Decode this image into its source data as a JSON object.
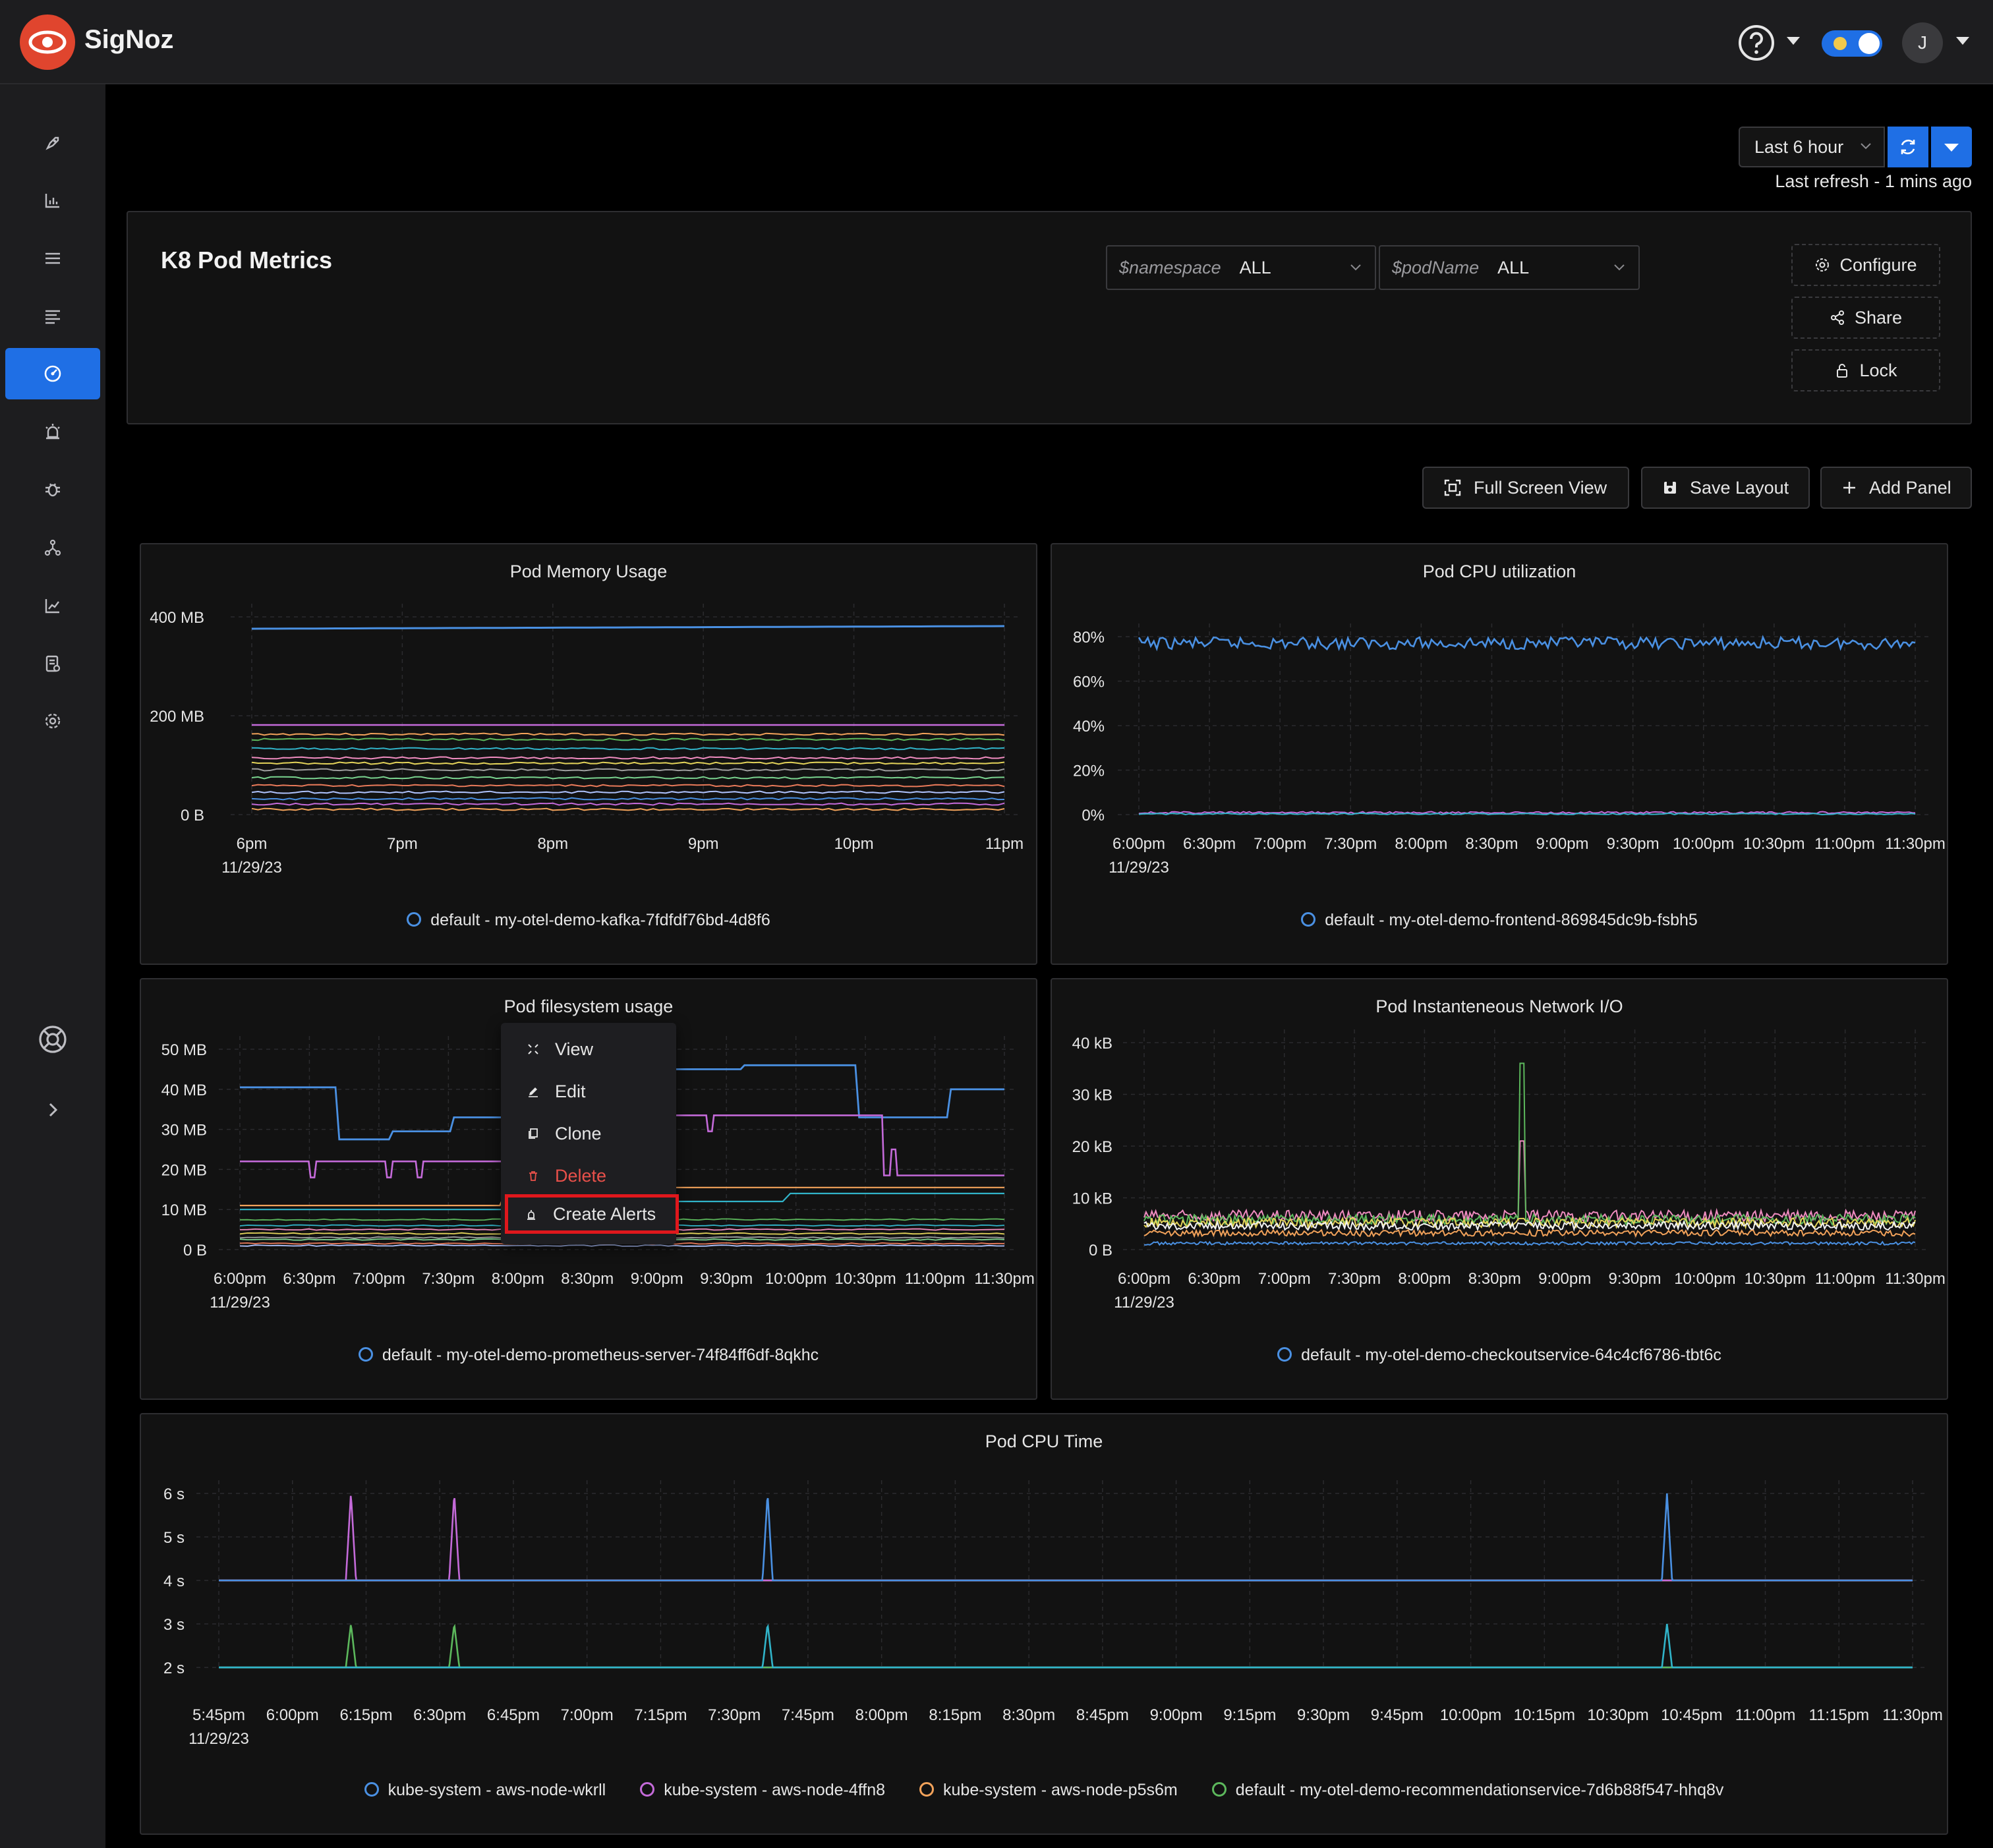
{
  "app": {
    "name": "SigNoz",
    "avatar_initial": "J"
  },
  "header": {
    "time_range": "Last 6 hour",
    "last_refresh": "Last refresh - 1 mins ago"
  },
  "sidebar": {
    "items": [
      {
        "icon": "rocket-icon"
      },
      {
        "icon": "bar-chart-icon"
      },
      {
        "icon": "menu-list-icon"
      },
      {
        "icon": "logs-icon"
      },
      {
        "icon": "dashboard-icon",
        "active": true
      },
      {
        "icon": "alarm-icon"
      },
      {
        "icon": "bug-icon"
      },
      {
        "icon": "service-map-icon"
      },
      {
        "icon": "line-chart-icon"
      },
      {
        "icon": "billing-icon"
      },
      {
        "icon": "gear-icon"
      }
    ],
    "bottom": [
      {
        "icon": "support-icon"
      },
      {
        "icon": "expand-chevron-icon"
      }
    ]
  },
  "dashboard": {
    "title": "K8 Pod Metrics",
    "variables": [
      {
        "name": "$namespace",
        "value": "ALL"
      },
      {
        "name": "$podName",
        "value": "ALL"
      }
    ],
    "actions": {
      "configure": "Configure",
      "share": "Share",
      "lock": "Lock"
    },
    "toolbar": {
      "full_screen": "Full Screen View",
      "save_layout": "Save Layout",
      "add_panel": "Add Panel"
    }
  },
  "context_menu": {
    "items": [
      "View",
      "Edit",
      "Clone",
      "Delete",
      "Create Alerts"
    ]
  },
  "colors": {
    "accent": "#1f6fe5",
    "blue": "#4a90e2",
    "purple": "#c46ad9",
    "orange": "#f2a25a",
    "green": "#5cb85c",
    "cyan": "#31b4c9",
    "pink": "#f08cc0",
    "danger": "#e8504a"
  },
  "panels": [
    {
      "title": "Pod Memory Usage",
      "y_ticks": [
        "400 MB",
        "200 MB",
        "0 B"
      ],
      "x_ticks": [
        "6pm",
        "7pm",
        "8pm",
        "9pm",
        "10pm",
        "11pm"
      ],
      "x_date": "11/29/23",
      "legend": [
        "default - my-otel-demo-kafka-7fdfdf76bd-4d8f6"
      ]
    },
    {
      "title": "Pod CPU utilization",
      "y_ticks": [
        "80%",
        "60%",
        "40%",
        "20%",
        "0%"
      ],
      "x_ticks": [
        "6:00pm",
        "6:30pm",
        "7:00pm",
        "7:30pm",
        "8:00pm",
        "8:30pm",
        "9:00pm",
        "9:30pm",
        "10:00pm",
        "10:30pm",
        "11:00pm",
        "11:30pm"
      ],
      "x_date": "11/29/23",
      "legend": [
        "default - my-otel-demo-frontend-869845dc9b-fsbh5"
      ]
    },
    {
      "title": "Pod filesystem usage",
      "y_ticks": [
        "50 MB",
        "40 MB",
        "30 MB",
        "20 MB",
        "10 MB",
        "0 B"
      ],
      "x_ticks": [
        "6:00pm",
        "6:30pm",
        "7:00pm",
        "7:30pm",
        "8:00pm",
        "8:30pm",
        "9:00pm",
        "9:30pm",
        "10:00pm",
        "10:30pm",
        "11:00pm",
        "11:30pm"
      ],
      "x_date": "11/29/23",
      "legend": [
        "default - my-otel-demo-prometheus-server-74f84ff6df-8qkhc"
      ]
    },
    {
      "title": "Pod Instanteneous Network I/O",
      "y_ticks": [
        "40 kB",
        "30 kB",
        "20 kB",
        "10 kB",
        "0 B"
      ],
      "x_ticks": [
        "6:00pm",
        "6:30pm",
        "7:00pm",
        "7:30pm",
        "8:00pm",
        "8:30pm",
        "9:00pm",
        "9:30pm",
        "10:00pm",
        "10:30pm",
        "11:00pm",
        "11:30pm"
      ],
      "x_date": "11/29/23",
      "legend": [
        "default - my-otel-demo-checkoutservice-64c4cf6786-tbt6c"
      ]
    },
    {
      "title": "Pod CPU Time",
      "y_ticks": [
        "6 s",
        "5 s",
        "4 s",
        "3 s",
        "2 s"
      ],
      "x_ticks": [
        "5:45pm",
        "6:00pm",
        "6:15pm",
        "6:30pm",
        "6:45pm",
        "7:00pm",
        "7:15pm",
        "7:30pm",
        "7:45pm",
        "8:00pm",
        "8:15pm",
        "8:30pm",
        "8:45pm",
        "9:00pm",
        "9:15pm",
        "9:30pm",
        "9:45pm",
        "10:00pm",
        "10:15pm",
        "10:30pm",
        "10:45pm",
        "11:00pm",
        "11:15pm",
        "11:30pm"
      ],
      "x_date": "11/29/23",
      "legend": [
        "kube-system - aws-node-wkrll",
        "kube-system - aws-node-4ffn8",
        "kube-system - aws-node-p5s6m",
        "default - my-otel-demo-recommendationservice-7d6b88f547-hhq8v"
      ]
    }
  ]
}
